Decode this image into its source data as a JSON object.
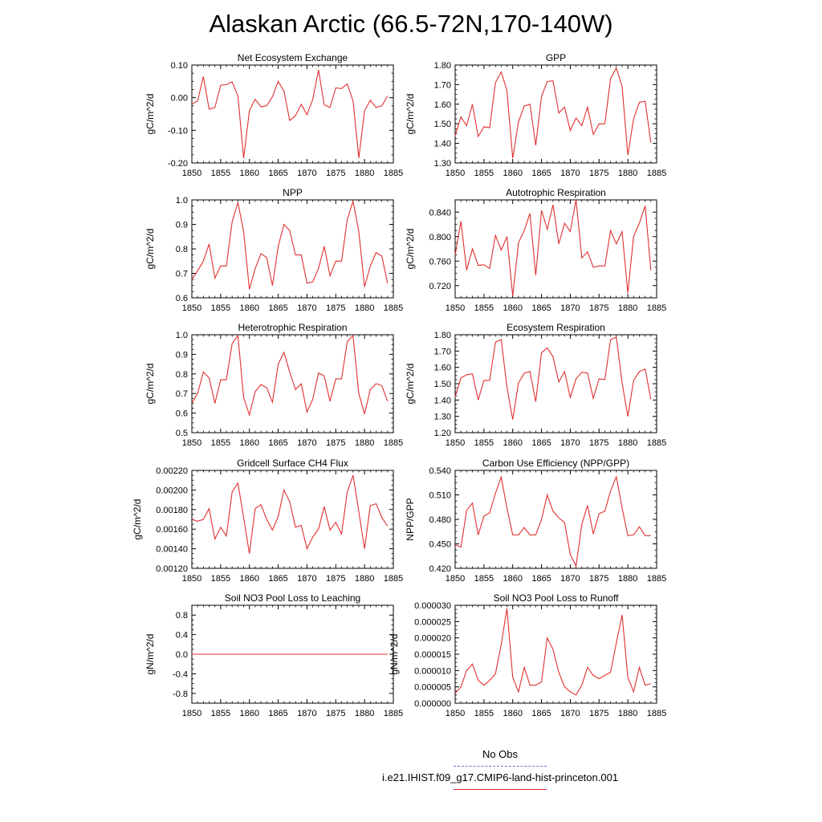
{
  "title": "Alaskan Arctic (66.5-72N,170-140W)",
  "legend": {
    "obs_label": "No Obs",
    "obs_color": "#6a6ad8",
    "model_label": "i.e21.IHIST.f09_g17.CMIP6-land-hist-princeton.001",
    "model_color": "#e03030"
  },
  "chart_data": [
    {
      "type": "line",
      "title": "Net Ecosystem Exchange",
      "ylabel": "gC/m^2/d",
      "xlim": [
        1850,
        1885
      ],
      "ylim": [
        -0.2,
        0.1
      ],
      "xticks": [
        1850,
        1855,
        1860,
        1865,
        1870,
        1875,
        1880,
        1885
      ],
      "yticks": [
        -0.2,
        -0.1,
        0.0,
        0.1
      ],
      "yticklabels": [
        "-0.20",
        "-0.10",
        "0.00",
        "0.10"
      ],
      "x": [
        1850,
        1851,
        1852,
        1853,
        1854,
        1855,
        1856,
        1857,
        1858,
        1859,
        1860,
        1861,
        1862,
        1863,
        1864,
        1865,
        1866,
        1867,
        1868,
        1869,
        1870,
        1871,
        1872,
        1873,
        1874,
        1875,
        1876,
        1877,
        1878,
        1879,
        1880,
        1881,
        1882,
        1883,
        1884
      ],
      "series": [
        {
          "values": [
            -0.02,
            -0.01,
            0.065,
            -0.035,
            -0.03,
            0.038,
            0.04,
            0.048,
            0.005,
            -0.185,
            -0.04,
            -0.005,
            -0.028,
            -0.025,
            0.003,
            0.05,
            0.02,
            -0.07,
            -0.055,
            -0.02,
            -0.052,
            -0.005,
            0.085,
            -0.022,
            -0.03,
            0.03,
            0.028,
            0.042,
            -0.01,
            -0.185,
            -0.04,
            -0.008,
            -0.03,
            -0.025,
            0.005
          ]
        }
      ]
    },
    {
      "type": "line",
      "title": "GPP",
      "ylabel": "gC/m^2/d",
      "xlim": [
        1850,
        1885
      ],
      "ylim": [
        1.3,
        1.8
      ],
      "xticks": [
        1850,
        1855,
        1860,
        1865,
        1870,
        1875,
        1880,
        1885
      ],
      "yticks": [
        1.3,
        1.4,
        1.5,
        1.6,
        1.7,
        1.8
      ],
      "yticklabels": [
        "1.30",
        "1.40",
        "1.50",
        "1.60",
        "1.70",
        "1.80"
      ],
      "x": [
        1850,
        1851,
        1852,
        1853,
        1854,
        1855,
        1856,
        1857,
        1858,
        1859,
        1860,
        1861,
        1862,
        1863,
        1864,
        1865,
        1866,
        1867,
        1868,
        1869,
        1870,
        1871,
        1872,
        1873,
        1874,
        1875,
        1876,
        1877,
        1878,
        1879,
        1880,
        1881,
        1882,
        1883,
        1884
      ],
      "series": [
        {
          "values": [
            1.44,
            1.535,
            1.49,
            1.6,
            1.435,
            1.485,
            1.48,
            1.71,
            1.765,
            1.67,
            1.325,
            1.51,
            1.59,
            1.6,
            1.39,
            1.64,
            1.715,
            1.72,
            1.555,
            1.585,
            1.465,
            1.53,
            1.49,
            1.585,
            1.445,
            1.5,
            1.5,
            1.73,
            1.785,
            1.69,
            1.34,
            1.525,
            1.61,
            1.615,
            1.405
          ]
        }
      ]
    },
    {
      "type": "line",
      "title": "NPP",
      "ylabel": "gC/m^2/d",
      "xlim": [
        1850,
        1885
      ],
      "ylim": [
        0.6,
        1.0
      ],
      "xticks": [
        1850,
        1855,
        1860,
        1865,
        1870,
        1875,
        1880,
        1885
      ],
      "yticks": [
        0.6,
        0.7,
        0.8,
        0.9,
        1.0
      ],
      "yticklabels": [
        "0.6",
        "0.7",
        "0.8",
        "0.9",
        "1.0"
      ],
      "x": [
        1850,
        1851,
        1852,
        1853,
        1854,
        1855,
        1856,
        1857,
        1858,
        1859,
        1860,
        1861,
        1862,
        1863,
        1864,
        1865,
        1866,
        1867,
        1868,
        1869,
        1870,
        1871,
        1872,
        1873,
        1874,
        1875,
        1876,
        1877,
        1878,
        1879,
        1880,
        1881,
        1882,
        1883,
        1884
      ],
      "series": [
        {
          "values": [
            0.675,
            0.71,
            0.75,
            0.82,
            0.68,
            0.73,
            0.73,
            0.91,
            0.99,
            0.87,
            0.635,
            0.72,
            0.78,
            0.765,
            0.65,
            0.81,
            0.9,
            0.875,
            0.775,
            0.775,
            0.66,
            0.665,
            0.72,
            0.81,
            0.69,
            0.75,
            0.75,
            0.92,
            0.995,
            0.87,
            0.645,
            0.73,
            0.785,
            0.77,
            0.66
          ]
        }
      ]
    },
    {
      "type": "line",
      "title": "Autotrophic Respiration",
      "ylabel": "gC/m^2/d",
      "xlim": [
        1850,
        1885
      ],
      "ylim": [
        0.7,
        0.86
      ],
      "xticks": [
        1850,
        1855,
        1860,
        1865,
        1870,
        1875,
        1880,
        1885
      ],
      "yticks": [
        0.72,
        0.76,
        0.8,
        0.84
      ],
      "yticklabels": [
        "0.720",
        "0.760",
        "0.800",
        "0.840"
      ],
      "x": [
        1850,
        1851,
        1852,
        1853,
        1854,
        1855,
        1856,
        1857,
        1858,
        1859,
        1860,
        1861,
        1862,
        1863,
        1864,
        1865,
        1866,
        1867,
        1868,
        1869,
        1870,
        1871,
        1872,
        1873,
        1874,
        1875,
        1876,
        1877,
        1878,
        1879,
        1880,
        1881,
        1882,
        1883,
        1884
      ],
      "series": [
        {
          "values": [
            0.77,
            0.825,
            0.745,
            0.78,
            0.753,
            0.754,
            0.748,
            0.802,
            0.778,
            0.8,
            0.703,
            0.79,
            0.81,
            0.838,
            0.737,
            0.843,
            0.812,
            0.852,
            0.788,
            0.822,
            0.808,
            0.86,
            0.765,
            0.775,
            0.75,
            0.752,
            0.752,
            0.81,
            0.788,
            0.808,
            0.708,
            0.8,
            0.822,
            0.85,
            0.745
          ]
        }
      ]
    },
    {
      "type": "line",
      "title": "Heterotrophic Respiration",
      "ylabel": "gC/m^2/d",
      "xlim": [
        1850,
        1885
      ],
      "ylim": [
        0.5,
        1.0
      ],
      "xticks": [
        1850,
        1855,
        1860,
        1865,
        1870,
        1875,
        1880,
        1885
      ],
      "yticks": [
        0.5,
        0.6,
        0.7,
        0.8,
        0.9,
        1.0
      ],
      "yticklabels": [
        "0.5",
        "0.6",
        "0.7",
        "0.8",
        "0.9",
        "1.0"
      ],
      "x": [
        1850,
        1851,
        1852,
        1853,
        1854,
        1855,
        1856,
        1857,
        1858,
        1859,
        1860,
        1861,
        1862,
        1863,
        1864,
        1865,
        1866,
        1867,
        1868,
        1869,
        1870,
        1871,
        1872,
        1873,
        1874,
        1875,
        1876,
        1877,
        1878,
        1879,
        1880,
        1881,
        1882,
        1883,
        1884
      ],
      "series": [
        {
          "values": [
            0.65,
            0.7,
            0.81,
            0.78,
            0.65,
            0.77,
            0.77,
            0.955,
            0.995,
            0.68,
            0.59,
            0.71,
            0.745,
            0.73,
            0.655,
            0.85,
            0.91,
            0.81,
            0.72,
            0.75,
            0.605,
            0.67,
            0.805,
            0.79,
            0.66,
            0.775,
            0.775,
            0.965,
            0.995,
            0.7,
            0.595,
            0.72,
            0.75,
            0.74,
            0.66
          ]
        }
      ]
    },
    {
      "type": "line",
      "title": "Ecosystem Respiration",
      "ylabel": "gC/m^2/d",
      "xlim": [
        1850,
        1885
      ],
      "ylim": [
        1.2,
        1.8
      ],
      "xticks": [
        1850,
        1855,
        1860,
        1865,
        1870,
        1875,
        1880,
        1885
      ],
      "yticks": [
        1.2,
        1.3,
        1.4,
        1.5,
        1.6,
        1.7,
        1.8
      ],
      "yticklabels": [
        "1.20",
        "1.30",
        "1.40",
        "1.50",
        "1.60",
        "1.70",
        "1.80"
      ],
      "x": [
        1850,
        1851,
        1852,
        1853,
        1854,
        1855,
        1856,
        1857,
        1858,
        1859,
        1860,
        1861,
        1862,
        1863,
        1864,
        1865,
        1866,
        1867,
        1868,
        1869,
        1870,
        1871,
        1872,
        1873,
        1874,
        1875,
        1876,
        1877,
        1878,
        1879,
        1880,
        1881,
        1882,
        1883,
        1884
      ],
      "series": [
        {
          "values": [
            1.42,
            1.535,
            1.555,
            1.56,
            1.4,
            1.52,
            1.52,
            1.755,
            1.77,
            1.48,
            1.28,
            1.505,
            1.565,
            1.575,
            1.39,
            1.69,
            1.72,
            1.665,
            1.51,
            1.575,
            1.415,
            1.53,
            1.57,
            1.565,
            1.41,
            1.53,
            1.525,
            1.77,
            1.785,
            1.505,
            1.3,
            1.52,
            1.575,
            1.59,
            1.405
          ]
        }
      ]
    },
    {
      "type": "line",
      "title": "Gridcell Surface CH4 Flux",
      "ylabel": "gC/m^2/d",
      "xlim": [
        1850,
        1885
      ],
      "ylim": [
        0.0012,
        0.0022
      ],
      "xticks": [
        1850,
        1855,
        1860,
        1865,
        1870,
        1875,
        1880,
        1885
      ],
      "yticks": [
        0.0012,
        0.0014,
        0.0016,
        0.0018,
        0.002,
        0.0022
      ],
      "yticklabels": [
        "0.00120",
        "0.00140",
        "0.00160",
        "0.00180",
        "0.00200",
        "0.00220"
      ],
      "x": [
        1850,
        1851,
        1852,
        1853,
        1854,
        1855,
        1856,
        1857,
        1858,
        1859,
        1860,
        1861,
        1862,
        1863,
        1864,
        1865,
        1866,
        1867,
        1868,
        1869,
        1870,
        1871,
        1872,
        1873,
        1874,
        1875,
        1876,
        1877,
        1878,
        1879,
        1880,
        1881,
        1882,
        1883,
        1884
      ],
      "series": [
        {
          "values": [
            0.0017,
            0.00168,
            0.0017,
            0.00181,
            0.0015,
            0.00162,
            0.00153,
            0.00198,
            0.00207,
            0.00172,
            0.00135,
            0.00181,
            0.00185,
            0.0017,
            0.00159,
            0.00173,
            0.002,
            0.00188,
            0.00162,
            0.00164,
            0.0014,
            0.00152,
            0.0016,
            0.00183,
            0.00159,
            0.00167,
            0.00155,
            0.00198,
            0.00215,
            0.00178,
            0.0014,
            0.00184,
            0.00186,
            0.00172,
            0.00163
          ]
        }
      ]
    },
    {
      "type": "line",
      "title": "Carbon Use Efficiency (NPP/GPP)",
      "ylabel": "NPP/GPP",
      "xlim": [
        1850,
        1885
      ],
      "ylim": [
        0.42,
        0.54
      ],
      "xticks": [
        1850,
        1855,
        1860,
        1865,
        1870,
        1875,
        1880,
        1885
      ],
      "yticks": [
        0.42,
        0.45,
        0.48,
        0.51,
        0.54
      ],
      "yticklabels": [
        "0.420",
        "0.450",
        "0.480",
        "0.510",
        "0.540"
      ],
      "x": [
        1850,
        1851,
        1852,
        1853,
        1854,
        1855,
        1856,
        1857,
        1858,
        1859,
        1860,
        1861,
        1862,
        1863,
        1864,
        1865,
        1866,
        1867,
        1868,
        1869,
        1870,
        1871,
        1872,
        1873,
        1874,
        1875,
        1876,
        1877,
        1878,
        1879,
        1880,
        1881,
        1882,
        1883,
        1884
      ],
      "series": [
        {
          "values": [
            0.449,
            0.446,
            0.491,
            0.5,
            0.461,
            0.484,
            0.488,
            0.512,
            0.532,
            0.494,
            0.461,
            0.461,
            0.47,
            0.461,
            0.461,
            0.48,
            0.51,
            0.49,
            0.482,
            0.476,
            0.437,
            0.423,
            0.474,
            0.497,
            0.462,
            0.487,
            0.49,
            0.515,
            0.532,
            0.494,
            0.46,
            0.461,
            0.471,
            0.46,
            0.46
          ]
        }
      ]
    },
    {
      "type": "line",
      "title": "Soil NO3 Pool Loss to Leaching",
      "ylabel": "gN/m^2/d",
      "xlim": [
        1850,
        1885
      ],
      "ylim": [
        -1.0,
        1.0
      ],
      "xticks": [
        1850,
        1855,
        1860,
        1865,
        1870,
        1875,
        1880,
        1885
      ],
      "yticks": [
        -0.8,
        -0.4,
        0.0,
        0.4,
        0.8
      ],
      "yticklabels": [
        "-0.8",
        "-0.4",
        "0.0",
        "0.4",
        "0.8"
      ],
      "x": [
        1850,
        1851,
        1852,
        1853,
        1854,
        1855,
        1856,
        1857,
        1858,
        1859,
        1860,
        1861,
        1862,
        1863,
        1864,
        1865,
        1866,
        1867,
        1868,
        1869,
        1870,
        1871,
        1872,
        1873,
        1874,
        1875,
        1876,
        1877,
        1878,
        1879,
        1880,
        1881,
        1882,
        1883,
        1884
      ],
      "series": [
        {
          "values": [
            0,
            0,
            0,
            0,
            0,
            0,
            0,
            0,
            0,
            0,
            0,
            0,
            0,
            0,
            0,
            0,
            0,
            0,
            0,
            0,
            0,
            0,
            0,
            0,
            0,
            0,
            0,
            0,
            0,
            0,
            0,
            0,
            0,
            0,
            0
          ]
        }
      ]
    },
    {
      "type": "line",
      "title": "Soil NO3 Pool Loss to Runoff",
      "ylabel": "gN/m^2/d",
      "xlim": [
        1850,
        1885
      ],
      "ylim": [
        0.0,
        3e-05
      ],
      "xticks": [
        1850,
        1855,
        1860,
        1865,
        1870,
        1875,
        1880,
        1885
      ],
      "yticks": [
        0.0,
        5e-06,
        1e-05,
        1.5e-05,
        2e-05,
        2.5e-05,
        3e-05
      ],
      "yticklabels": [
        "0.000000",
        "0.000005",
        "0.000010",
        "0.000015",
        "0.000020",
        "0.000025",
        "0.000030"
      ],
      "x": [
        1850,
        1851,
        1852,
        1853,
        1854,
        1855,
        1856,
        1857,
        1858,
        1859,
        1860,
        1861,
        1862,
        1863,
        1864,
        1865,
        1866,
        1867,
        1868,
        1869,
        1870,
        1871,
        1872,
        1873,
        1874,
        1875,
        1876,
        1877,
        1878,
        1879,
        1880,
        1881,
        1882,
        1883,
        1884
      ],
      "series": [
        {
          "values": [
            3e-06,
            5e-06,
            1e-05,
            1.2e-05,
            7e-06,
            5.5e-06,
            7e-06,
            9e-06,
            1.8e-05,
            2.9e-05,
            8e-06,
            3.5e-06,
            1.1e-05,
            5.5e-06,
            5.5e-06,
            6.5e-06,
            2e-05,
            1.65e-05,
            9.5e-06,
            5e-06,
            3.5e-06,
            2.5e-06,
            5.5e-06,
            1.1e-05,
            8.5e-06,
            7.5e-06,
            8.5e-06,
            9.5e-06,
            1.85e-05,
            2.7e-05,
            8e-06,
            3.5e-06,
            1.1e-05,
            5.5e-06,
            6e-06
          ]
        }
      ]
    }
  ]
}
